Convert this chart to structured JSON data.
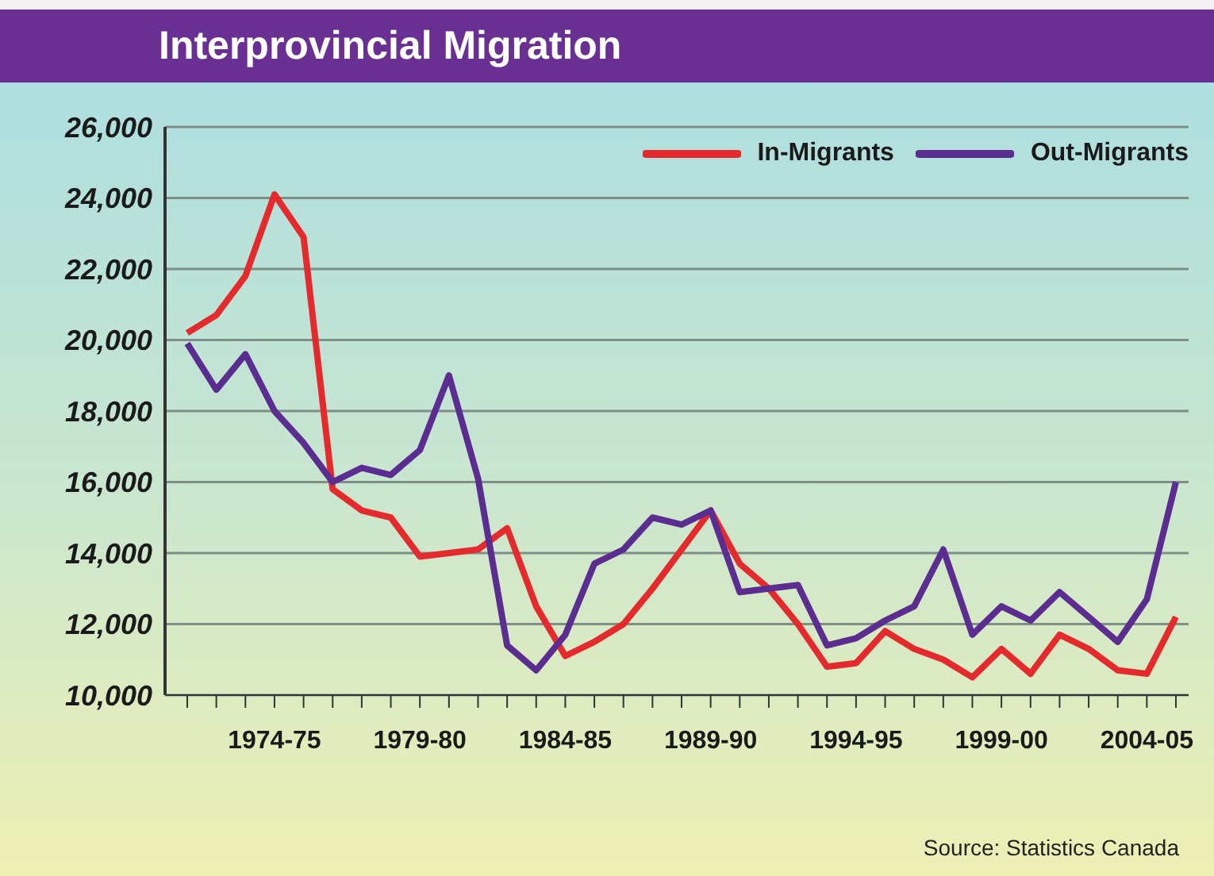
{
  "chart_data": {
    "type": "line",
    "title": "Interprovincial Migration",
    "categories": [
      null,
      null,
      null,
      "1974-75",
      null,
      null,
      null,
      null,
      "1979-80",
      null,
      null,
      null,
      null,
      "1984-85",
      null,
      null,
      null,
      null,
      "1989-90",
      null,
      null,
      null,
      null,
      "1994-95",
      null,
      null,
      null,
      null,
      "1999-00",
      null,
      null,
      null,
      null,
      "2004-05",
      null
    ],
    "series": [
      {
        "name": "In-Migrants",
        "color": "#e52a2e",
        "values": [
          20200,
          20700,
          21800,
          24100,
          22900,
          15800,
          15200,
          15000,
          13900,
          14000,
          14100,
          14700,
          12500,
          11100,
          11500,
          12000,
          13000,
          14100,
          15200,
          13700,
          13000,
          12000,
          10800,
          10900,
          11800,
          11300,
          11000,
          10500,
          11300,
          10600,
          11700,
          11300,
          10700,
          10600,
          12200
        ]
      },
      {
        "name": "Out-Migrants",
        "color": "#5c2d91",
        "values": [
          19900,
          18600,
          19600,
          18000,
          17100,
          16000,
          16400,
          16200,
          16900,
          19000,
          16100,
          11400,
          10700,
          11700,
          13700,
          14100,
          15000,
          14800,
          15200,
          12900,
          13000,
          13100,
          11400,
          11600,
          12100,
          12500,
          14100,
          11700,
          12500,
          12100,
          12900,
          12200,
          11500,
          12700,
          16000
        ]
      }
    ],
    "ylim": [
      10000,
      26000
    ],
    "yticks": [
      {
        "value": 10000,
        "label": "10,000"
      },
      {
        "value": 12000,
        "label": "12,000"
      },
      {
        "value": 14000,
        "label": "14,000"
      },
      {
        "value": 16000,
        "label": "16,000"
      },
      {
        "value": 18000,
        "label": "18,000"
      },
      {
        "value": 20000,
        "label": "20,000"
      },
      {
        "value": 22000,
        "label": "22,000"
      },
      {
        "value": 24000,
        "label": "24,000"
      },
      {
        "value": 26000,
        "label": "26,000"
      }
    ],
    "grid": "y",
    "legend": "top right",
    "marker": "none",
    "line_style": "solid",
    "annotations": [
      "Source: Statistics Canada"
    ]
  }
}
